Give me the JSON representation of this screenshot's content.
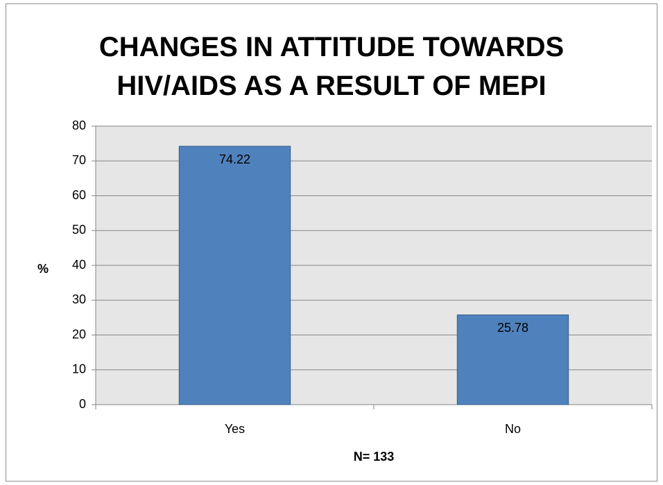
{
  "chart_data": {
    "type": "bar",
    "title": "CHANGES IN ATTITUDE TOWARDS HIV/AIDS AS A RESULT OF MEPI",
    "categories": [
      "Yes",
      "No"
    ],
    "values": [
      74.22,
      25.78
    ],
    "color": "#4f81bd",
    "ylabel": "%",
    "xlabel": "N= 133",
    "ylim": [
      0,
      80
    ],
    "yticks": [
      0,
      10,
      20,
      30,
      40,
      50,
      60,
      70,
      80
    ],
    "grid": true
  }
}
